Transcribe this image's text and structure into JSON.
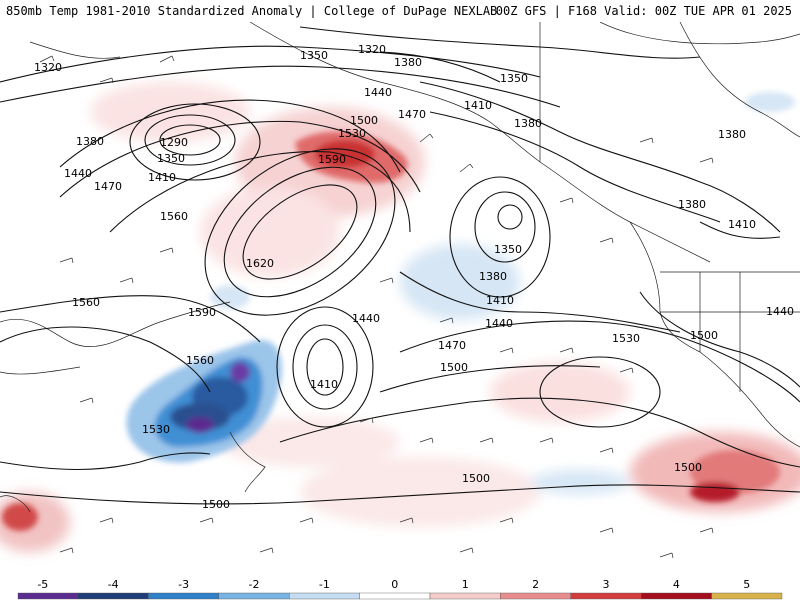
{
  "header": {
    "left_title": "850mb Temp 1981-2010 Standardized Anomaly | College of DuPage NEXLAB",
    "right_title": "00Z GFS | F168 Valid: 00Z TUE APR 01 2025"
  },
  "contour_labels": [
    {
      "id": "c1320a",
      "text": "1320"
    },
    {
      "id": "c1320b",
      "text": "1320"
    },
    {
      "id": "c1350a",
      "text": "1350"
    },
    {
      "id": "c1380a",
      "text": "1380"
    },
    {
      "id": "c1350b",
      "text": "1350"
    },
    {
      "id": "c1440a",
      "text": "1440"
    },
    {
      "id": "c1410a",
      "text": "1410"
    },
    {
      "id": "c1470a",
      "text": "1470"
    },
    {
      "id": "c1500a",
      "text": "1500"
    },
    {
      "id": "c1530a",
      "text": "1530"
    },
    {
      "id": "c1380b",
      "text": "1380"
    },
    {
      "id": "c1380c",
      "text": "1380"
    },
    {
      "id": "c1290",
      "text": "1290"
    },
    {
      "id": "c1380d",
      "text": "1380"
    },
    {
      "id": "c1350c",
      "text": "1350"
    },
    {
      "id": "c1440b",
      "text": "1440"
    },
    {
      "id": "c1410b",
      "text": "1410"
    },
    {
      "id": "c1470b",
      "text": "1470"
    },
    {
      "id": "c1590a",
      "text": "1590"
    },
    {
      "id": "c1560a",
      "text": "1560"
    },
    {
      "id": "c1620",
      "text": "1620"
    },
    {
      "id": "c1350d",
      "text": "1350"
    },
    {
      "id": "c1380e",
      "text": "1380"
    },
    {
      "id": "c1410c",
      "text": "1410"
    },
    {
      "id": "c1440c",
      "text": "1440"
    },
    {
      "id": "c1380f",
      "text": "1380"
    },
    {
      "id": "c1410d",
      "text": "1410"
    },
    {
      "id": "c1560b",
      "text": "1560"
    },
    {
      "id": "c1590b",
      "text": "1590"
    },
    {
      "id": "c1440d",
      "text": "1440"
    },
    {
      "id": "c1470c",
      "text": "1470"
    },
    {
      "id": "c1440e",
      "text": "1440"
    },
    {
      "id": "c1500b",
      "text": "1500"
    },
    {
      "id": "c1530b",
      "text": "1530"
    },
    {
      "id": "c1500c",
      "text": "1500"
    },
    {
      "id": "c1560c",
      "text": "1560"
    },
    {
      "id": "c1410e",
      "text": "1410"
    },
    {
      "id": "c1500d",
      "text": "1500"
    },
    {
      "id": "c1530c",
      "text": "1530"
    },
    {
      "id": "c1500e",
      "text": "1500"
    },
    {
      "id": "c1500f",
      "text": "1500"
    }
  ],
  "colorbar": {
    "ticks": [
      "-5",
      "-4",
      "-3",
      "-2",
      "-1",
      "0",
      "1",
      "2",
      "3",
      "4",
      "5"
    ],
    "colors": [
      "#5b2c8f",
      "#1f3e78",
      "#2f7fc9",
      "#78b3e3",
      "#c5dcf1",
      "#ffffff",
      "#f5cccc",
      "#e88d8d",
      "#d23c3c",
      "#a30f1e",
      "#d8b24a"
    ]
  }
}
